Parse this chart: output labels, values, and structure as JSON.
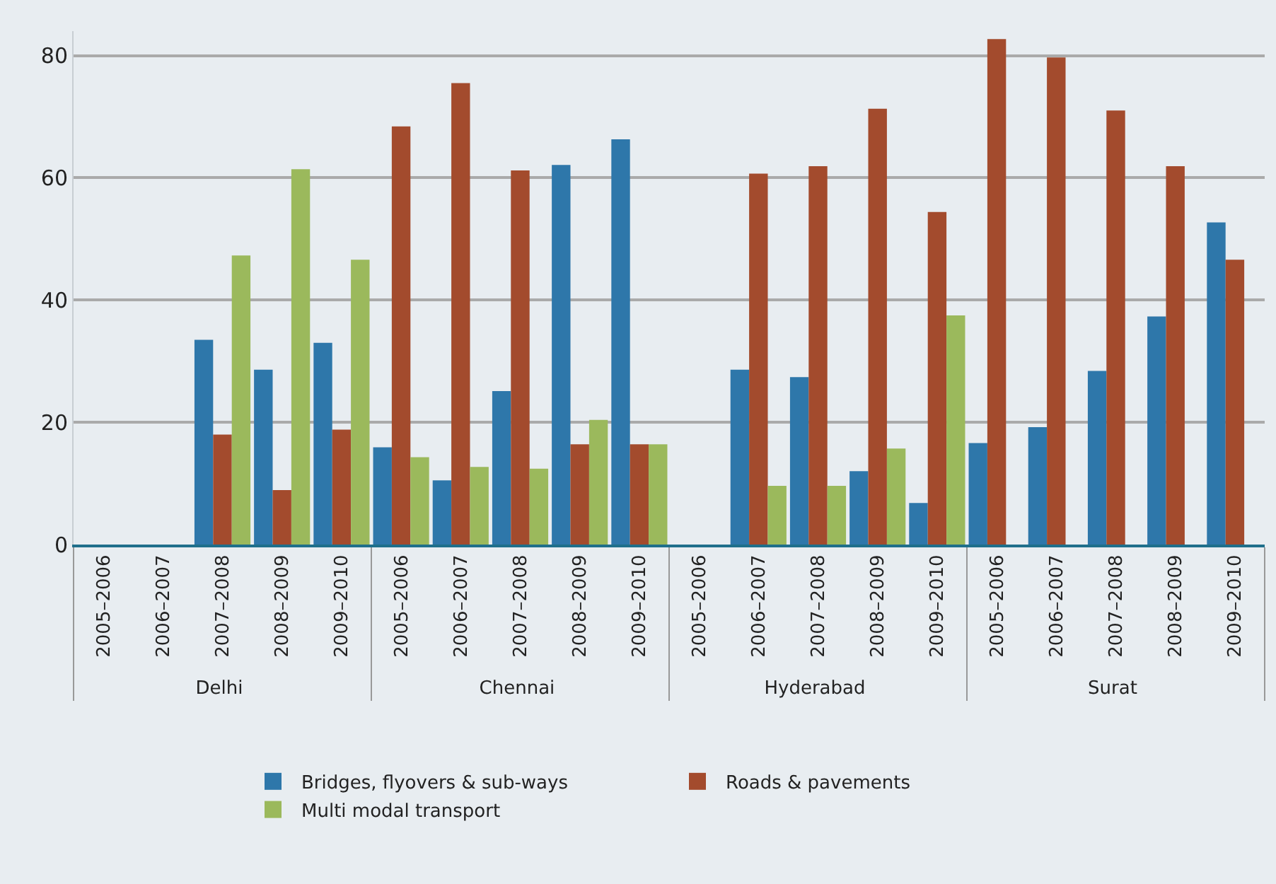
{
  "chart_data": {
    "type": "bar",
    "categories": [
      "2005–2006",
      "2006–2007",
      "2007–2008",
      "2008–2009",
      "2009–2010",
      "2005–2006",
      "2006–2007",
      "2007–2008",
      "2008–2009",
      "2009–2010",
      "2005–2006",
      "2006–2007",
      "2007–2008",
      "2008–2009",
      "2009–2010",
      "2005–2006",
      "2006–2007",
      "2007–2008",
      "2008–2009",
      "2009–2010"
    ],
    "series": [
      {
        "name": "Bridges, flyovers & sub-ways",
        "color": "#2e77aa",
        "values": [
          0,
          0,
          33.5,
          28.6,
          33.0,
          15.9,
          10.5,
          25.1,
          62.1,
          66.3,
          0,
          28.6,
          27.4,
          12.0,
          6.8,
          16.6,
          19.2,
          28.4,
          37.3,
          52.7
        ]
      },
      {
        "name": "Roads & pavements",
        "color": "#a34b2d",
        "values": [
          0,
          0,
          18.0,
          8.9,
          18.8,
          68.4,
          75.5,
          61.2,
          16.4,
          16.4,
          0,
          60.7,
          61.9,
          71.3,
          54.4,
          82.7,
          79.7,
          71.0,
          61.9,
          46.6
        ]
      },
      {
        "name": "Multi modal transport",
        "color": "#9bb95c",
        "values": [
          0,
          0,
          47.3,
          61.4,
          46.6,
          14.3,
          12.7,
          12.4,
          20.4,
          16.4,
          0,
          9.6,
          9.6,
          15.7,
          37.5,
          0,
          0,
          0,
          0,
          0
        ]
      }
    ],
    "annotations": [
      "Delhi",
      "Chennai",
      "Hyderabad",
      "Surat"
    ],
    "ylim": [
      0,
      84
    ],
    "yticks": [
      0,
      20,
      40,
      60,
      80
    ],
    "grid": "y",
    "legend": "bottom"
  }
}
